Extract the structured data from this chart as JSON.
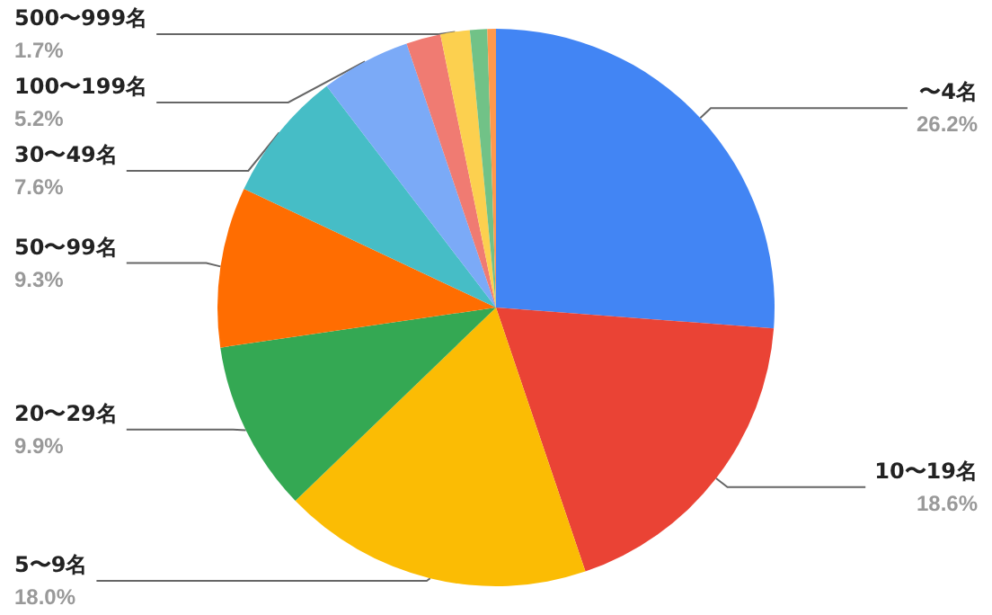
{
  "chart_data": {
    "type": "pie",
    "categories": [
      "〜4名",
      "10〜19名",
      "5〜9名",
      "20〜29名",
      "50〜99名",
      "30〜49名",
      "100〜199名",
      null,
      "500〜999名",
      null,
      null
    ],
    "values": [
      26.2,
      18.6,
      18.0,
      9.9,
      9.3,
      7.6,
      5.2,
      2.0,
      1.7,
      1.0,
      0.5
    ],
    "value_labels": [
      "26.2%",
      "18.6%",
      "18.0%",
      "9.9%",
      "9.3%",
      "7.6%",
      "5.2%",
      null,
      "1.7%",
      null,
      null
    ],
    "colors": [
      "#4285f4",
      "#ea4335",
      "#fbbc04",
      "#34a853",
      "#ff6d01",
      "#46bdc6",
      "#7baaf7",
      "#f07b72",
      "#fcd04f",
      "#71c287",
      "#ff994d"
    ],
    "legend": false
  }
}
